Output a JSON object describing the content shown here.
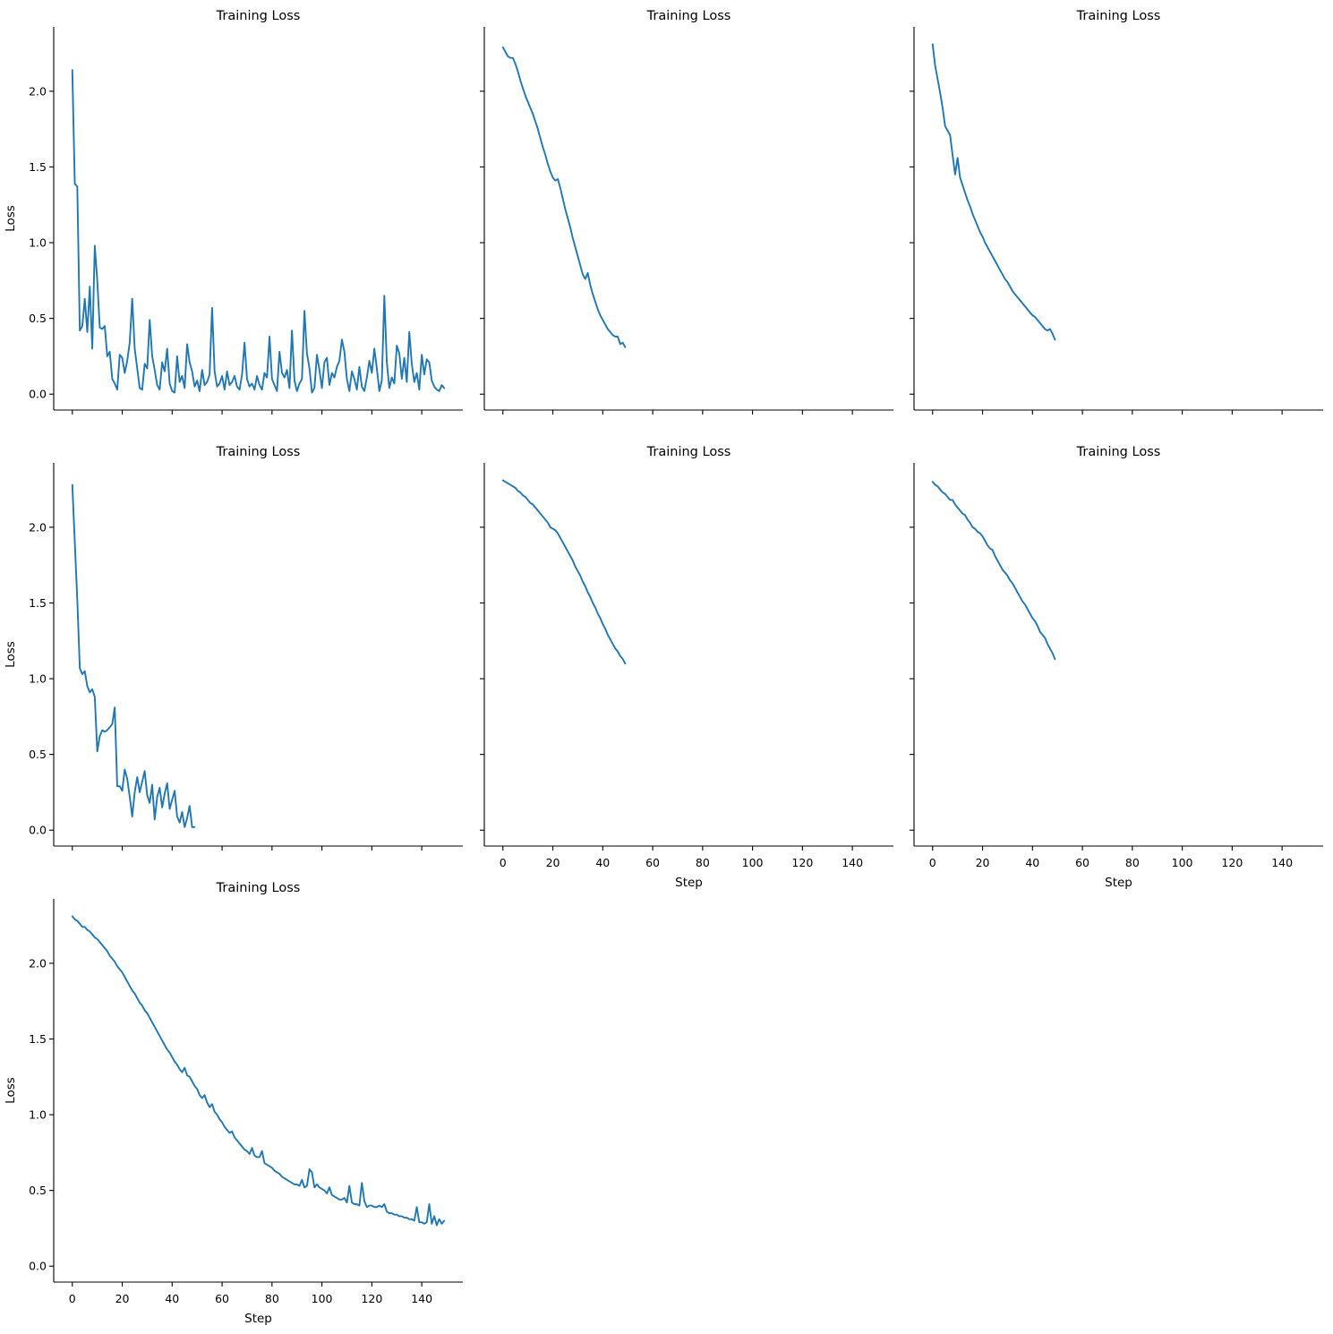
{
  "figure": {
    "background": "#ffffff",
    "text_color": "#000000",
    "line_color": "#1f77b4"
  },
  "chart_data": [
    {
      "type": "line",
      "title": "Training Loss",
      "xlabel": "",
      "ylabel": "Loss",
      "series_color": "#1f77b4",
      "grid": false,
      "legend": null,
      "xlim": [
        -7.45,
        156.45
      ],
      "ylim": [
        -0.105,
        2.425
      ],
      "xticks": [
        0,
        20,
        40,
        60,
        80,
        100,
        120,
        140
      ],
      "yticks": [
        0,
        0.5,
        1,
        1.5,
        2
      ],
      "xtick_labels": null,
      "ytick_labels": [
        "0.0",
        "0.5",
        "1.0",
        "1.5",
        "2.0"
      ],
      "x_start": 0,
      "x_step": 1,
      "values": [
        2.14,
        1.39,
        1.37,
        0.42,
        0.45,
        0.63,
        0.41,
        0.71,
        0.3,
        0.98,
        0.75,
        0.44,
        0.43,
        0.45,
        0.25,
        0.28,
        0.1,
        0.07,
        0.03,
        0.26,
        0.24,
        0.14,
        0.22,
        0.34,
        0.63,
        0.3,
        0.17,
        0.04,
        0.03,
        0.2,
        0.17,
        0.49,
        0.25,
        0.16,
        0.06,
        0.03,
        0.21,
        0.15,
        0.3,
        0.07,
        0.02,
        0.01,
        0.25,
        0.08,
        0.12,
        0.04,
        0.33,
        0.21,
        0.15,
        0.05,
        0.09,
        0.02,
        0.16,
        0.06,
        0.08,
        0.13,
        0.57,
        0.15,
        0.05,
        0.07,
        0.12,
        0.03,
        0.15,
        0.06,
        0.08,
        0.12,
        0.05,
        0.03,
        0.13,
        0.34,
        0.1,
        0.05,
        0.07,
        0.03,
        0.12,
        0.06,
        0.03,
        0.14,
        0.11,
        0.38,
        0.1,
        0.06,
        0.02,
        0.28,
        0.14,
        0.11,
        0.16,
        0.04,
        0.42,
        0.09,
        0.02,
        0.07,
        0.1,
        0.55,
        0.27,
        0.17,
        0.01,
        0.04,
        0.26,
        0.16,
        0.04,
        0.21,
        0.24,
        0.06,
        0.14,
        0.11,
        0.18,
        0.22,
        0.36,
        0.28,
        0.1,
        0.02,
        0.15,
        0.1,
        0.03,
        0.18,
        0.05,
        0.02,
        0.11,
        0.22,
        0.14,
        0.3,
        0.17,
        0.02,
        0.09,
        0.65,
        0.21,
        0.04,
        0.11,
        0.07,
        0.32,
        0.27,
        0.1,
        0.24,
        0.08,
        0.41,
        0.2,
        0.08,
        0.14,
        0.03,
        0.26,
        0.13,
        0.23,
        0.21,
        0.09,
        0.05,
        0.03,
        0.02,
        0.06,
        0.04
      ]
    },
    {
      "type": "line",
      "title": "Training Loss",
      "xlabel": "",
      "ylabel": "",
      "series_color": "#1f77b4",
      "grid": false,
      "legend": null,
      "xlim": [
        -7.45,
        156.45
      ],
      "ylim": [
        -0.105,
        2.425
      ],
      "xticks": [
        0,
        20,
        40,
        60,
        80,
        100,
        120,
        140
      ],
      "yticks": [
        0,
        0.5,
        1,
        1.5,
        2
      ],
      "xtick_labels": null,
      "ytick_labels": null,
      "x_start": 0,
      "x_step": 1,
      "values": [
        2.29,
        2.26,
        2.23,
        2.22,
        2.22,
        2.18,
        2.13,
        2.07,
        2.02,
        1.97,
        1.93,
        1.89,
        1.85,
        1.8,
        1.75,
        1.69,
        1.63,
        1.58,
        1.52,
        1.47,
        1.43,
        1.41,
        1.42,
        1.36,
        1.29,
        1.22,
        1.16,
        1.1,
        1.03,
        0.97,
        0.91,
        0.85,
        0.79,
        0.76,
        0.8,
        0.72,
        0.66,
        0.61,
        0.56,
        0.52,
        0.49,
        0.46,
        0.43,
        0.41,
        0.39,
        0.38,
        0.38,
        0.33,
        0.34,
        0.31
      ]
    },
    {
      "type": "line",
      "title": "Training Loss",
      "xlabel": "",
      "ylabel": "",
      "series_color": "#1f77b4",
      "grid": false,
      "legend": null,
      "xlim": [
        -7.45,
        156.45
      ],
      "ylim": [
        -0.105,
        2.425
      ],
      "xticks": [
        0,
        20,
        40,
        60,
        80,
        100,
        120,
        140
      ],
      "yticks": [
        0,
        0.5,
        1,
        1.5,
        2
      ],
      "xtick_labels": null,
      "ytick_labels": null,
      "x_start": 0,
      "x_step": 1,
      "values": [
        2.31,
        2.17,
        2.08,
        1.99,
        1.89,
        1.77,
        1.74,
        1.71,
        1.58,
        1.45,
        1.56,
        1.43,
        1.38,
        1.33,
        1.28,
        1.24,
        1.19,
        1.15,
        1.11,
        1.07,
        1.04,
        1.0,
        0.97,
        0.94,
        0.91,
        0.88,
        0.85,
        0.82,
        0.79,
        0.76,
        0.74,
        0.71,
        0.68,
        0.66,
        0.64,
        0.62,
        0.6,
        0.58,
        0.56,
        0.54,
        0.52,
        0.51,
        0.49,
        0.47,
        0.45,
        0.43,
        0.42,
        0.43,
        0.4,
        0.36
      ]
    },
    {
      "type": "line",
      "title": "Training Loss",
      "xlabel": "",
      "ylabel": "Loss",
      "series_color": "#1f77b4",
      "grid": false,
      "legend": null,
      "xlim": [
        -7.45,
        156.45
      ],
      "ylim": [
        -0.105,
        2.425
      ],
      "xticks": [
        0,
        20,
        40,
        60,
        80,
        100,
        120,
        140
      ],
      "yticks": [
        0,
        0.5,
        1,
        1.5,
        2
      ],
      "xtick_labels": null,
      "ytick_labels": [
        "0.0",
        "0.5",
        "1.0",
        "1.5",
        "2.0"
      ],
      "x_start": 0,
      "x_step": 1,
      "values": [
        2.28,
        1.9,
        1.52,
        1.07,
        1.03,
        1.05,
        0.95,
        0.91,
        0.93,
        0.88,
        0.52,
        0.62,
        0.66,
        0.65,
        0.66,
        0.68,
        0.7,
        0.81,
        0.29,
        0.29,
        0.26,
        0.4,
        0.34,
        0.22,
        0.09,
        0.25,
        0.35,
        0.25,
        0.32,
        0.39,
        0.23,
        0.18,
        0.3,
        0.07,
        0.22,
        0.28,
        0.15,
        0.24,
        0.31,
        0.14,
        0.2,
        0.26,
        0.09,
        0.05,
        0.12,
        0.02,
        0.08,
        0.16,
        0.02,
        0.02
      ]
    },
    {
      "type": "line",
      "title": "Training Loss",
      "xlabel": "Step",
      "ylabel": "",
      "series_color": "#1f77b4",
      "grid": false,
      "legend": null,
      "xlim": [
        -7.45,
        156.45
      ],
      "ylim": [
        -0.105,
        2.425
      ],
      "xticks": [
        0,
        20,
        40,
        60,
        80,
        100,
        120,
        140
      ],
      "yticks": [
        0,
        0.5,
        1,
        1.5,
        2
      ],
      "xtick_labels": [
        "0",
        "20",
        "40",
        "60",
        "80",
        "100",
        "120",
        "140"
      ],
      "ytick_labels": null,
      "x_start": 0,
      "x_step": 1,
      "values": [
        2.31,
        2.3,
        2.29,
        2.28,
        2.27,
        2.26,
        2.24,
        2.23,
        2.21,
        2.2,
        2.18,
        2.16,
        2.15,
        2.13,
        2.11,
        2.09,
        2.07,
        2.05,
        2.03,
        2.0,
        1.99,
        1.98,
        1.96,
        1.93,
        1.9,
        1.87,
        1.84,
        1.81,
        1.78,
        1.74,
        1.71,
        1.68,
        1.64,
        1.61,
        1.57,
        1.54,
        1.5,
        1.47,
        1.43,
        1.4,
        1.36,
        1.33,
        1.29,
        1.26,
        1.23,
        1.2,
        1.18,
        1.15,
        1.13,
        1.1
      ]
    },
    {
      "type": "line",
      "title": "Training Loss",
      "xlabel": "Step",
      "ylabel": "",
      "series_color": "#1f77b4",
      "grid": false,
      "legend": null,
      "xlim": [
        -7.45,
        156.45
      ],
      "ylim": [
        -0.105,
        2.425
      ],
      "xticks": [
        0,
        20,
        40,
        60,
        80,
        100,
        120,
        140
      ],
      "yticks": [
        0,
        0.5,
        1,
        1.5,
        2
      ],
      "xtick_labels": [
        "0",
        "20",
        "40",
        "60",
        "80",
        "100",
        "120",
        "140"
      ],
      "ytick_labels": null,
      "x_start": 0,
      "x_step": 1,
      "values": [
        2.3,
        2.28,
        2.27,
        2.25,
        2.23,
        2.22,
        2.2,
        2.18,
        2.18,
        2.15,
        2.13,
        2.11,
        2.09,
        2.08,
        2.05,
        2.03,
        2.0,
        1.99,
        1.97,
        1.96,
        1.94,
        1.91,
        1.88,
        1.86,
        1.85,
        1.81,
        1.78,
        1.75,
        1.72,
        1.7,
        1.68,
        1.65,
        1.63,
        1.6,
        1.57,
        1.54,
        1.51,
        1.49,
        1.46,
        1.43,
        1.4,
        1.38,
        1.35,
        1.31,
        1.29,
        1.27,
        1.23,
        1.2,
        1.17,
        1.13
      ]
    },
    {
      "type": "line",
      "title": "Training Loss",
      "xlabel": "Step",
      "ylabel": "Loss",
      "series_color": "#1f77b4",
      "grid": false,
      "legend": null,
      "xlim": [
        -7.45,
        156.45
      ],
      "ylim": [
        -0.105,
        2.425
      ],
      "xticks": [
        0,
        20,
        40,
        60,
        80,
        100,
        120,
        140
      ],
      "yticks": [
        0,
        0.5,
        1,
        1.5,
        2
      ],
      "xtick_labels": [
        "0",
        "20",
        "40",
        "60",
        "80",
        "100",
        "120",
        "140"
      ],
      "ytick_labels": [
        "0.0",
        "0.5",
        "1.0",
        "1.5",
        "2.0"
      ],
      "x_start": 0,
      "x_step": 1,
      "values": [
        2.31,
        2.29,
        2.28,
        2.26,
        2.24,
        2.24,
        2.22,
        2.21,
        2.19,
        2.17,
        2.16,
        2.14,
        2.12,
        2.1,
        2.08,
        2.05,
        2.03,
        2.01,
        1.98,
        1.96,
        1.94,
        1.91,
        1.88,
        1.85,
        1.82,
        1.8,
        1.77,
        1.74,
        1.72,
        1.69,
        1.67,
        1.64,
        1.61,
        1.58,
        1.55,
        1.52,
        1.49,
        1.46,
        1.43,
        1.41,
        1.38,
        1.35,
        1.33,
        1.3,
        1.28,
        1.31,
        1.26,
        1.25,
        1.22,
        1.19,
        1.17,
        1.13,
        1.11,
        1.13,
        1.08,
        1.05,
        1.07,
        1.02,
        1.0,
        0.97,
        0.95,
        0.92,
        0.9,
        0.88,
        0.89,
        0.85,
        0.83,
        0.81,
        0.79,
        0.77,
        0.76,
        0.74,
        0.78,
        0.73,
        0.72,
        0.72,
        0.76,
        0.68,
        0.67,
        0.66,
        0.65,
        0.63,
        0.62,
        0.61,
        0.59,
        0.58,
        0.57,
        0.56,
        0.55,
        0.54,
        0.54,
        0.53,
        0.57,
        0.52,
        0.53,
        0.64,
        0.62,
        0.52,
        0.54,
        0.52,
        0.51,
        0.5,
        0.48,
        0.52,
        0.47,
        0.46,
        0.45,
        0.44,
        0.44,
        0.45,
        0.42,
        0.53,
        0.42,
        0.41,
        0.41,
        0.4,
        0.55,
        0.43,
        0.39,
        0.4,
        0.4,
        0.39,
        0.39,
        0.4,
        0.39,
        0.41,
        0.36,
        0.35,
        0.35,
        0.34,
        0.34,
        0.33,
        0.33,
        0.32,
        0.32,
        0.31,
        0.31,
        0.3,
        0.39,
        0.29,
        0.29,
        0.28,
        0.29,
        0.41,
        0.28,
        0.33,
        0.27,
        0.31,
        0.28,
        0.3
      ]
    }
  ]
}
